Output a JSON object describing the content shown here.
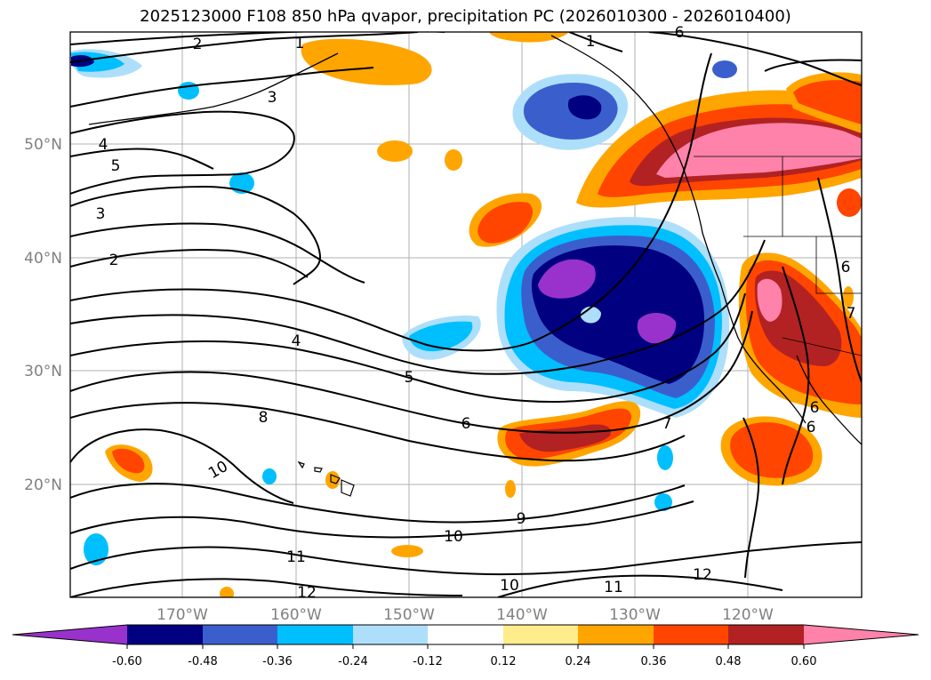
{
  "title": "2025123000 F108 850 hPa qvapor, precipitation PC (2026010300 - 2026010400)",
  "map": {
    "lat_labels": [
      "50°N",
      "40°N",
      "30°N",
      "20°N"
    ],
    "lon_labels": [
      "170°W",
      "160°W",
      "150°W",
      "140°W",
      "130°W",
      "120°W"
    ],
    "contour_labels": [
      {
        "id": "c2a",
        "text": "2"
      },
      {
        "id": "c1a",
        "text": "1"
      },
      {
        "id": "c1b",
        "text": "1"
      },
      {
        "id": "c3a",
        "text": "3"
      },
      {
        "id": "c4a",
        "text": "4"
      },
      {
        "id": "c5a",
        "text": "5"
      },
      {
        "id": "c3b",
        "text": "3"
      },
      {
        "id": "c2b",
        "text": "2"
      },
      {
        "id": "c4b",
        "text": "4"
      },
      {
        "id": "c5b",
        "text": "5"
      },
      {
        "id": "c6a",
        "text": "6"
      },
      {
        "id": "c8a",
        "text": "8"
      },
      {
        "id": "c10a",
        "text": "10"
      },
      {
        "id": "c9a",
        "text": "9"
      },
      {
        "id": "c10b",
        "text": "10"
      },
      {
        "id": "c11a",
        "text": "11"
      },
      {
        "id": "c12a",
        "text": "12"
      },
      {
        "id": "c10c",
        "text": "10"
      },
      {
        "id": "c11b",
        "text": "11"
      },
      {
        "id": "c12b",
        "text": "12"
      },
      {
        "id": "c6b",
        "text": "6"
      },
      {
        "id": "c7a",
        "text": "7"
      },
      {
        "id": "c6c",
        "text": "6"
      },
      {
        "id": "c6d",
        "text": "6"
      },
      {
        "id": "c7b",
        "text": "7"
      },
      {
        "id": "c6e",
        "text": "6"
      }
    ]
  },
  "colorbar": {
    "tick_labels": [
      "-0.60",
      "-0.48",
      "-0.36",
      "-0.24",
      "-0.12",
      "0.12",
      "0.24",
      "0.36",
      "0.48",
      "0.60"
    ],
    "colors": {
      "below": "#9932CC",
      "n060": "#000080",
      "n048": "#3A5FCD",
      "n036": "#00BFFF",
      "n024": "#ADDFFA",
      "n012": "#FFFFFF",
      "p012": "#FFEC8B",
      "p024": "#FFA500",
      "p036": "#FF4500",
      "p048": "#B22222",
      "above": "#FF82AB"
    }
  }
}
